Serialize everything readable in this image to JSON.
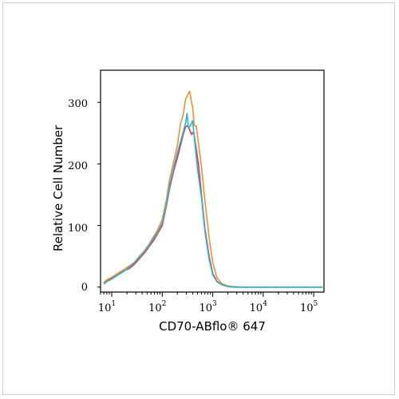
{
  "chart_data": {
    "type": "line",
    "xscale": "log",
    "xlabel": "CD70-ABflo® 647",
    "ylabel": "Relative Cell Number",
    "xlim": [
      6,
      160000
    ],
    "ylim": [
      -8,
      352
    ],
    "yticks": [
      "0",
      "100",
      "200",
      "300"
    ],
    "xticks": [
      {
        "value": 10,
        "base": "10",
        "exp": "1"
      },
      {
        "value": 100,
        "base": "10",
        "exp": "2"
      },
      {
        "value": 1000,
        "base": "10",
        "exp": "3"
      },
      {
        "value": 10000,
        "base": "10",
        "exp": "4"
      },
      {
        "value": 100000,
        "base": "10",
        "exp": "5"
      }
    ],
    "grid": false,
    "series": [
      {
        "color": "#e8333a",
        "x": [
          7,
          8,
          10,
          13,
          17,
          22,
          28,
          35,
          45,
          55,
          65,
          80,
          100,
          120,
          140,
          170,
          200,
          230,
          260,
          290,
          320,
          350,
          380,
          420,
          460,
          520,
          600,
          700,
          850,
          1000,
          1200,
          1500,
          2000,
          2600,
          4000,
          10000,
          100000,
          150000
        ],
        "y": [
          6,
          10,
          14,
          20,
          26,
          30,
          37,
          46,
          56,
          66,
          74,
          86,
          100,
          130,
          160,
          190,
          210,
          230,
          248,
          260,
          262,
          255,
          248,
          252,
          230,
          200,
          150,
          95,
          50,
          22,
          10,
          4,
          1,
          0,
          0,
          0,
          0,
          0
        ]
      },
      {
        "color": "#f28f2c",
        "x": [
          7,
          8,
          10,
          13,
          17,
          22,
          28,
          35,
          45,
          55,
          65,
          80,
          100,
          120,
          140,
          170,
          200,
          230,
          260,
          290,
          320,
          350,
          380,
          400,
          430,
          470,
          520,
          600,
          700,
          850,
          1000,
          1200,
          1500,
          2000,
          2600,
          4000,
          10000,
          100000,
          150000
        ],
        "y": [
          8,
          12,
          16,
          22,
          28,
          34,
          40,
          50,
          60,
          70,
          80,
          92,
          110,
          140,
          175,
          205,
          230,
          265,
          280,
          305,
          312,
          318,
          300,
          292,
          262,
          262,
          235,
          195,
          140,
          80,
          40,
          16,
          6,
          2,
          1,
          0,
          0,
          0,
          0
        ]
      },
      {
        "color": "#23b7e5",
        "x": [
          7,
          8,
          10,
          13,
          17,
          22,
          28,
          35,
          45,
          55,
          65,
          80,
          100,
          120,
          140,
          170,
          200,
          230,
          260,
          290,
          310,
          330,
          360,
          400,
          440,
          500,
          600,
          700,
          850,
          1000,
          1200,
          1500,
          2000,
          2600,
          4000,
          10000,
          100000,
          150000
        ],
        "y": [
          5,
          9,
          13,
          19,
          25,
          32,
          40,
          48,
          58,
          68,
          78,
          88,
          104,
          132,
          165,
          195,
          218,
          236,
          252,
          266,
          282,
          258,
          262,
          270,
          236,
          192,
          145,
          90,
          45,
          20,
          9,
          4,
          1,
          0,
          0,
          0,
          0,
          0
        ]
      }
    ]
  }
}
